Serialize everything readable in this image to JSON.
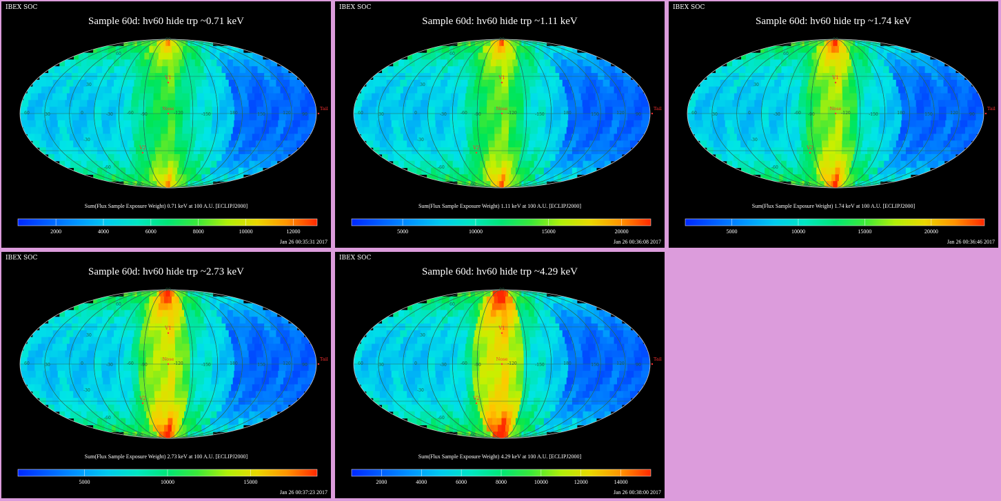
{
  "background_color": "#dc9cdc",
  "chart_data": [
    {
      "type": "heatmap",
      "header": "IBEX SOC",
      "title": "Sample 60d: hv60 hide trp ~0.71 keV",
      "colorbar_label": "Sum(Flux Sample Exposure Weight)  0.71 keV at 100 A.U. [ECLIPJ2000]",
      "colorbar_ticks": [
        "2000",
        "4000",
        "6000",
        "8000",
        "10000",
        "12000"
      ],
      "colorbar_range": [
        400,
        13000
      ],
      "timestamp": "Jan 26 00:35:31 2017",
      "markers": [
        "V1",
        "V2",
        "Nose",
        "Tail"
      ],
      "longitude_labels": [
        "60",
        "30",
        "0",
        "-30",
        "-60",
        "-90",
        "-120",
        "-150",
        "180",
        "150",
        "120",
        "90"
      ],
      "latitude_labels": [
        "60",
        "30",
        "-30",
        "-60",
        "-90",
        "90"
      ]
    },
    {
      "type": "heatmap",
      "header": "IBEX SOC",
      "title": "Sample 60d: hv60 hide trp ~1.11 keV",
      "colorbar_label": "Sum(Flux Sample Exposure Weight)  1.11 keV at 100 A.U. [ECLIPJ2000]",
      "colorbar_ticks": [
        "5000",
        "10000",
        "15000",
        "20000"
      ],
      "colorbar_range": [
        1500,
        22000
      ],
      "timestamp": "Jan 26 00:36:08 2017",
      "markers": [
        "V1",
        "V2",
        "Nose",
        "Tail"
      ],
      "longitude_labels": [
        "60",
        "30",
        "0",
        "-30",
        "-60",
        "-90",
        "-120",
        "-150",
        "180",
        "150",
        "120",
        "90"
      ],
      "latitude_labels": [
        "60",
        "30",
        "-30",
        "-60",
        "-90",
        "90"
      ]
    },
    {
      "type": "heatmap",
      "header": "IBEX SOC",
      "title": "Sample 60d: hv60 hide trp ~1.74 keV",
      "colorbar_label": "Sum(Flux Sample Exposure Weight)  1.74 keV at 100 A.U. [ECLIPJ2000]",
      "colorbar_ticks": [
        "5000",
        "10000",
        "15000",
        "20000"
      ],
      "colorbar_range": [
        1500,
        24000
      ],
      "timestamp": "Jan 26 00:36:46 2017",
      "markers": [
        "V1",
        "V2",
        "Nose",
        "Tail"
      ],
      "longitude_labels": [
        "60",
        "30",
        "0",
        "-30",
        "-60",
        "-90",
        "-120",
        "-150",
        "180",
        "150",
        "120",
        "90"
      ],
      "latitude_labels": [
        "60",
        "30",
        "-30",
        "-60",
        "-90",
        "90"
      ]
    },
    {
      "type": "heatmap",
      "header": "IBEX SOC",
      "title": "Sample 60d: hv60 hide trp ~2.73 keV",
      "colorbar_label": "Sum(Flux Sample Exposure Weight)  2.73 keV at 100 A.U. [ECLIPJ2000]",
      "colorbar_ticks": [
        "5000",
        "10000",
        "15000"
      ],
      "colorbar_range": [
        1000,
        19000
      ],
      "timestamp": "Jan 26 00:37:23 2017",
      "markers": [
        "V1",
        "V2",
        "Nose",
        "Tail"
      ],
      "longitude_labels": [
        "60",
        "30",
        "0",
        "-30",
        "-60",
        "-90",
        "-120",
        "-150",
        "180",
        "150",
        "120",
        "90"
      ],
      "latitude_labels": [
        "60",
        "30",
        "-30",
        "-60",
        "-90",
        "90"
      ]
    },
    {
      "type": "heatmap",
      "header": "IBEX SOC",
      "title": "Sample 60d: hv60 hide trp ~4.29 keV",
      "colorbar_label": "Sum(Flux Sample Exposure Weight)  4.29 keV at 100 A.U. [ECLIPJ2000]",
      "colorbar_ticks": [
        "2000",
        "4000",
        "6000",
        "8000",
        "10000",
        "12000",
        "14000"
      ],
      "colorbar_range": [
        500,
        15500
      ],
      "timestamp": "Jan 26 00:38:00 2017",
      "markers": [
        "V1",
        "V2",
        "Nose",
        "Tail"
      ],
      "longitude_labels": [
        "60",
        "30",
        "0",
        "-30",
        "-60",
        "-90",
        "-120",
        "-150",
        "180",
        "150",
        "120",
        "90"
      ],
      "latitude_labels": [
        "60",
        "30",
        "-30",
        "-60",
        "-90",
        "90"
      ]
    }
  ]
}
